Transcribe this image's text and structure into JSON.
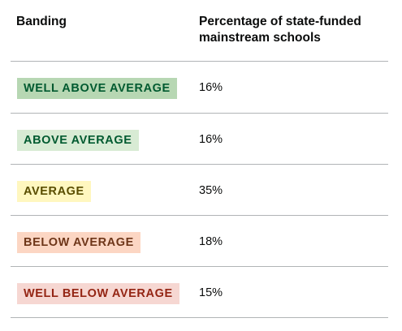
{
  "table": {
    "headers": {
      "banding": "Banding",
      "percentage_line1": "Percentage of state-funded",
      "percentage_line2": "mainstream schools"
    },
    "rows": [
      {
        "band": "WELL ABOVE AVERAGE",
        "percentage": "16%",
        "tag_bg": "#b7d7b3",
        "tag_text": "#005a30"
      },
      {
        "band": "ABOVE AVERAGE",
        "percentage": "16%",
        "tag_bg": "#d8ebd4",
        "tag_text": "#005a30"
      },
      {
        "band": "AVERAGE",
        "percentage": "35%",
        "tag_bg": "#fff7bf",
        "tag_text": "#594d00"
      },
      {
        "band": "BELOW AVERAGE",
        "percentage": "18%",
        "tag_bg": "#fcd6c3",
        "tag_text": "#6e3619"
      },
      {
        "band": "WELL BELOW AVERAGE",
        "percentage": "15%",
        "tag_bg": "#f6d7d2",
        "tag_text": "#942514"
      }
    ]
  }
}
